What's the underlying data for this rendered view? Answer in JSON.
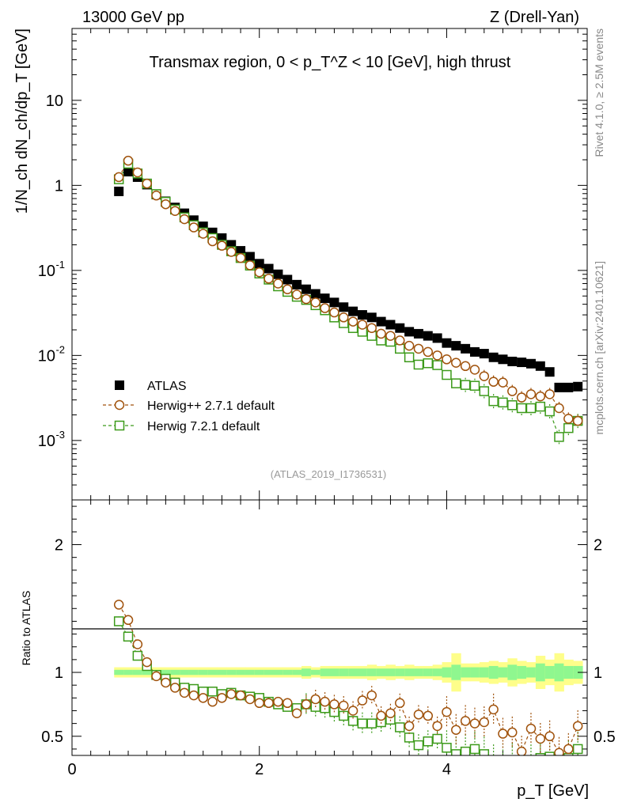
{
  "header": {
    "energy_label": "13000 GeV pp",
    "process_label": "Z (Drell-Yan)"
  },
  "side": {
    "rivet_label": "Rivet 4.1.0, ≥ 2.5M events",
    "source_label": "mcplots.cern.ch [arXiv:2401.10621]"
  },
  "colors": {
    "atlas": "#000000",
    "herwigpp": "#a0520c",
    "herwig7": "#3c9a1a",
    "band_outer": "#fefe8a",
    "band_inner": "#8ff78f"
  },
  "chart_data": [
    {
      "type": "scatter",
      "panel": "main",
      "title": "Transmax region, 0 < p_T^Z < 10 [GeV], high thrust",
      "ylabel": "1/N_ch dN_ch/dp_T [GeV]",
      "xlabel": "p_T [GeV]",
      "yscale": "log",
      "xlim": [
        0,
        5.5
      ],
      "ylim": [
        0.0002,
        70
      ],
      "y_ticks": [
        "10^-3",
        "10^-2",
        "10^-1",
        "1",
        "10"
      ],
      "legend_position": "lower-left",
      "watermark": "(ATLAS_2019_I1736531)",
      "x": [
        0.5,
        0.6,
        0.7,
        0.8,
        0.9,
        1.0,
        1.1,
        1.2,
        1.3,
        1.4,
        1.5,
        1.6,
        1.7,
        1.8,
        1.9,
        2.0,
        2.1,
        2.2,
        2.3,
        2.4,
        2.5,
        2.6,
        2.7,
        2.8,
        2.9,
        3.0,
        3.1,
        3.2,
        3.3,
        3.4,
        3.5,
        3.6,
        3.7,
        3.8,
        3.9,
        4.0,
        4.1,
        4.2,
        4.3,
        4.4,
        4.5,
        4.6,
        4.7,
        4.8,
        4.9,
        5.0,
        5.1,
        5.2,
        5.3,
        5.4
      ],
      "series": [
        {
          "name": "ATLAS",
          "marker": "filled-square",
          "values": [
            0.85,
            1.45,
            1.25,
            1.02,
            0.78,
            0.65,
            0.55,
            0.47,
            0.39,
            0.33,
            0.28,
            0.24,
            0.2,
            0.17,
            0.145,
            0.12,
            0.105,
            0.09,
            0.078,
            0.068,
            0.06,
            0.053,
            0.047,
            0.042,
            0.037,
            0.033,
            0.03,
            0.028,
            0.025,
            0.023,
            0.021,
            0.019,
            0.018,
            0.017,
            0.016,
            0.014,
            0.013,
            0.012,
            0.011,
            0.0105,
            0.0095,
            0.009,
            0.0085,
            0.0083,
            0.008,
            0.0075,
            0.0064,
            0.0042,
            0.0042,
            0.0043
          ]
        },
        {
          "name": "Herwig++ 2.7.1 default",
          "marker": "open-circle",
          "line": "dashed",
          "values": [
            1.25,
            1.95,
            1.42,
            1.05,
            0.76,
            0.6,
            0.5,
            0.4,
            0.32,
            0.27,
            0.22,
            0.195,
            0.165,
            0.14,
            0.115,
            0.095,
            0.08,
            0.07,
            0.06,
            0.052,
            0.046,
            0.042,
            0.036,
            0.032,
            0.028,
            0.025,
            0.023,
            0.021,
            0.018,
            0.017,
            0.015,
            0.013,
            0.012,
            0.011,
            0.01,
            0.009,
            0.0082,
            0.0075,
            0.0068,
            0.0057,
            0.0049,
            0.0048,
            0.0038,
            0.0032,
            0.0035,
            0.0033,
            0.0035,
            0.0024,
            0.0018,
            0.0017
          ]
        },
        {
          "name": "Herwig 7.2.1 default",
          "marker": "open-square",
          "line": "dashed",
          "values": [
            1.18,
            1.8,
            1.38,
            1.05,
            0.79,
            0.64,
            0.52,
            0.42,
            0.34,
            0.28,
            0.24,
            0.2,
            0.168,
            0.14,
            0.114,
            0.092,
            0.078,
            0.065,
            0.056,
            0.049,
            0.045,
            0.039,
            0.034,
            0.028,
            0.024,
            0.021,
            0.019,
            0.017,
            0.015,
            0.0145,
            0.012,
            0.0095,
            0.0078,
            0.0081,
            0.0077,
            0.0059,
            0.0047,
            0.0045,
            0.0044,
            0.0038,
            0.0029,
            0.0028,
            0.0026,
            0.0024,
            0.0024,
            0.0025,
            0.0022,
            0.0011,
            0.0014,
            0.0017
          ]
        }
      ]
    },
    {
      "type": "scatter",
      "panel": "ratio",
      "ylabel": "Ratio to ATLAS",
      "xlabel": "p_T [GeV]",
      "xlim": [
        0,
        5.5
      ],
      "ylim": [
        0.35,
        2.35
      ],
      "x_ticks": [
        0,
        2,
        4
      ],
      "y_ticks": [
        0.5,
        1,
        2
      ],
      "x": [
        0.5,
        0.6,
        0.7,
        0.8,
        0.9,
        1.0,
        1.1,
        1.2,
        1.3,
        1.4,
        1.5,
        1.6,
        1.7,
        1.8,
        1.9,
        2.0,
        2.1,
        2.2,
        2.3,
        2.4,
        2.5,
        2.6,
        2.7,
        2.8,
        2.9,
        3.0,
        3.1,
        3.2,
        3.3,
        3.4,
        3.5,
        3.6,
        3.7,
        3.8,
        3.9,
        4.0,
        4.1,
        4.2,
        4.3,
        4.4,
        4.5,
        4.6,
        4.7,
        4.8,
        4.9,
        5.0,
        5.1,
        5.2,
        5.3,
        5.4
      ],
      "uncertainty_outer": [
        0.04,
        0.04,
        0.04,
        0.04,
        0.04,
        0.04,
        0.04,
        0.04,
        0.04,
        0.04,
        0.04,
        0.04,
        0.04,
        0.04,
        0.04,
        0.04,
        0.04,
        0.04,
        0.04,
        0.04,
        0.05,
        0.04,
        0.05,
        0.05,
        0.05,
        0.05,
        0.05,
        0.06,
        0.05,
        0.06,
        0.05,
        0.06,
        0.05,
        0.05,
        0.06,
        0.08,
        0.15,
        0.07,
        0.07,
        0.08,
        0.09,
        0.08,
        0.11,
        0.09,
        0.08,
        0.13,
        0.1,
        0.15,
        0.1,
        0.09
      ],
      "uncertainty_inner": [
        0.02,
        0.02,
        0.02,
        0.02,
        0.02,
        0.02,
        0.02,
        0.02,
        0.02,
        0.02,
        0.02,
        0.02,
        0.02,
        0.02,
        0.02,
        0.02,
        0.02,
        0.02,
        0.02,
        0.02,
        0.03,
        0.02,
        0.03,
        0.03,
        0.03,
        0.03,
        0.03,
        0.03,
        0.03,
        0.03,
        0.03,
        0.03,
        0.03,
        0.03,
        0.03,
        0.04,
        0.06,
        0.04,
        0.04,
        0.04,
        0.05,
        0.04,
        0.06,
        0.05,
        0.04,
        0.07,
        0.05,
        0.07,
        0.05,
        0.05
      ],
      "series": [
        {
          "name": "Herwig++ 2.7.1 default",
          "values": [
            1.53,
            1.41,
            1.22,
            1.08,
            0.97,
            0.92,
            0.88,
            0.84,
            0.82,
            0.8,
            0.77,
            0.8,
            0.83,
            0.82,
            0.79,
            0.76,
            0.76,
            0.77,
            0.76,
            0.68,
            0.75,
            0.79,
            0.77,
            0.75,
            0.74,
            0.7,
            0.78,
            0.82,
            0.66,
            0.68,
            0.76,
            0.58,
            0.67,
            0.66,
            0.58,
            0.69,
            0.55,
            0.62,
            0.6,
            0.61,
            0.71,
            0.52,
            0.53,
            0.38,
            0.56,
            0.48,
            0.5,
            0.37,
            0.4,
            0.58
          ]
        },
        {
          "name": "Herwig 7.2.1 default",
          "values": [
            1.4,
            1.28,
            1.13,
            1.05,
            0.98,
            0.95,
            0.92,
            0.88,
            0.87,
            0.85,
            0.85,
            0.83,
            0.84,
            0.82,
            0.81,
            0.8,
            0.77,
            0.75,
            0.73,
            0.72,
            0.75,
            0.73,
            0.72,
            0.69,
            0.66,
            0.62,
            0.6,
            0.6,
            0.61,
            0.63,
            0.57,
            0.49,
            0.43,
            0.46,
            0.48,
            0.41,
            0.36,
            0.38,
            0.4,
            0.36,
            0.3,
            0.31,
            0.31,
            0.29,
            0.3,
            0.33,
            0.34,
            0.26,
            0.33,
            0.4
          ]
        }
      ]
    }
  ]
}
